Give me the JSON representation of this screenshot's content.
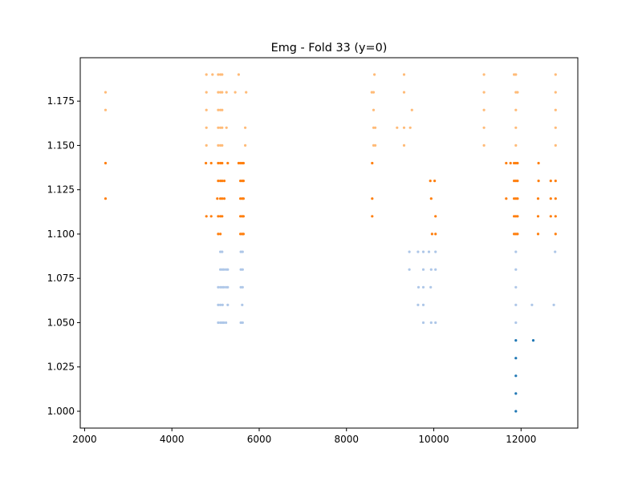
{
  "chart_data": {
    "type": "scatter",
    "title": "Emg - Fold 33 (y=0)",
    "xlabel": "",
    "ylabel": "",
    "xlim": [
      1900,
      13300
    ],
    "ylim": [
      0.9905,
      1.1995
    ],
    "x_ticks": [
      2000,
      4000,
      6000,
      8000,
      10000,
      12000
    ],
    "y_ticks": [
      1.0,
      1.025,
      1.05,
      1.075,
      1.1,
      1.125,
      1.15,
      1.175
    ],
    "x_tick_labels": [
      "2000",
      "4000",
      "6000",
      "8000",
      "10000",
      "12000"
    ],
    "y_tick_labels": [
      "1.000",
      "1.025",
      "1.050",
      "1.075",
      "1.100",
      "1.125",
      "1.150",
      "1.175"
    ],
    "grid": false,
    "legend": "none",
    "series": [
      {
        "color": "#1f77b4",
        "points": [
          [
            11880,
            1.0
          ],
          [
            11880,
            1.01
          ],
          [
            11880,
            1.02
          ],
          [
            11880,
            1.03
          ],
          [
            11880,
            1.04
          ],
          [
            12280,
            1.04
          ]
        ]
      },
      {
        "color": "#aec7e8",
        "points": [
          [
            5060,
            1.05
          ],
          [
            5110,
            1.05
          ],
          [
            5150,
            1.05
          ],
          [
            5190,
            1.05
          ],
          [
            5240,
            1.05
          ],
          [
            5580,
            1.05
          ],
          [
            5620,
            1.05
          ],
          [
            5060,
            1.06
          ],
          [
            5110,
            1.06
          ],
          [
            5160,
            1.06
          ],
          [
            5280,
            1.06
          ],
          [
            5610,
            1.06
          ],
          [
            5060,
            1.07
          ],
          [
            5110,
            1.07
          ],
          [
            5150,
            1.07
          ],
          [
            5190,
            1.07
          ],
          [
            5240,
            1.07
          ],
          [
            5280,
            1.07
          ],
          [
            5580,
            1.07
          ],
          [
            5620,
            1.07
          ],
          [
            5110,
            1.08
          ],
          [
            5150,
            1.08
          ],
          [
            5190,
            1.08
          ],
          [
            5240,
            1.08
          ],
          [
            5280,
            1.08
          ],
          [
            5580,
            1.08
          ],
          [
            5620,
            1.08
          ],
          [
            5110,
            1.09
          ],
          [
            5150,
            1.09
          ],
          [
            5580,
            1.09
          ],
          [
            5620,
            1.09
          ],
          [
            9760,
            1.05
          ],
          [
            9940,
            1.05
          ],
          [
            10040,
            1.05
          ],
          [
            9640,
            1.06
          ],
          [
            9760,
            1.06
          ],
          [
            9650,
            1.07
          ],
          [
            9760,
            1.07
          ],
          [
            9930,
            1.07
          ],
          [
            9440,
            1.08
          ],
          [
            9760,
            1.08
          ],
          [
            9940,
            1.08
          ],
          [
            10040,
            1.08
          ],
          [
            9440,
            1.09
          ],
          [
            9640,
            1.09
          ],
          [
            9760,
            1.09
          ],
          [
            9890,
            1.09
          ],
          [
            10040,
            1.09
          ],
          [
            11880,
            1.05
          ],
          [
            11880,
            1.06
          ],
          [
            11880,
            1.07
          ],
          [
            11880,
            1.08
          ],
          [
            11880,
            1.09
          ],
          [
            12250,
            1.06
          ],
          [
            12750,
            1.06
          ],
          [
            12780,
            1.09
          ]
        ]
      },
      {
        "color": "#ff7f0e",
        "points": [
          [
            2480,
            1.12
          ],
          [
            2480,
            1.14
          ],
          [
            4790,
            1.11
          ],
          [
            4900,
            1.11
          ],
          [
            5060,
            1.11
          ],
          [
            5110,
            1.11
          ],
          [
            5150,
            1.11
          ],
          [
            5060,
            1.1
          ],
          [
            5110,
            1.1
          ],
          [
            5040,
            1.12
          ],
          [
            5110,
            1.12
          ],
          [
            5150,
            1.12
          ],
          [
            5200,
            1.12
          ],
          [
            5060,
            1.13
          ],
          [
            5110,
            1.13
          ],
          [
            5150,
            1.13
          ],
          [
            5200,
            1.13
          ],
          [
            4780,
            1.14
          ],
          [
            4900,
            1.14
          ],
          [
            5060,
            1.14
          ],
          [
            5110,
            1.14
          ],
          [
            5150,
            1.14
          ],
          [
            5280,
            1.14
          ],
          [
            5570,
            1.1
          ],
          [
            5610,
            1.1
          ],
          [
            5640,
            1.1
          ],
          [
            5570,
            1.11
          ],
          [
            5610,
            1.11
          ],
          [
            5640,
            1.11
          ],
          [
            5570,
            1.12
          ],
          [
            5610,
            1.12
          ],
          [
            5640,
            1.12
          ],
          [
            5570,
            1.13
          ],
          [
            5610,
            1.13
          ],
          [
            5640,
            1.13
          ],
          [
            5530,
            1.14
          ],
          [
            5570,
            1.14
          ],
          [
            5610,
            1.14
          ],
          [
            5640,
            1.14
          ],
          [
            8590,
            1.11
          ],
          [
            8590,
            1.12
          ],
          [
            8590,
            1.14
          ],
          [
            9960,
            1.1
          ],
          [
            10040,
            1.1
          ],
          [
            10040,
            1.11
          ],
          [
            9940,
            1.12
          ],
          [
            9920,
            1.13
          ],
          [
            10020,
            1.13
          ],
          [
            11660,
            1.12
          ],
          [
            11660,
            1.14
          ],
          [
            11840,
            1.1
          ],
          [
            11880,
            1.1
          ],
          [
            11920,
            1.1
          ],
          [
            11840,
            1.11
          ],
          [
            11880,
            1.11
          ],
          [
            11920,
            1.11
          ],
          [
            11840,
            1.12
          ],
          [
            11880,
            1.12
          ],
          [
            11920,
            1.12
          ],
          [
            11840,
            1.13
          ],
          [
            11880,
            1.13
          ],
          [
            11920,
            1.13
          ],
          [
            11760,
            1.14
          ],
          [
            11840,
            1.14
          ],
          [
            11880,
            1.14
          ],
          [
            11920,
            1.14
          ],
          [
            12390,
            1.1
          ],
          [
            12390,
            1.11
          ],
          [
            12390,
            1.12
          ],
          [
            12400,
            1.13
          ],
          [
            12400,
            1.14
          ],
          [
            12680,
            1.11
          ],
          [
            12680,
            1.12
          ],
          [
            12680,
            1.13
          ],
          [
            12790,
            1.1
          ],
          [
            12790,
            1.11
          ],
          [
            12790,
            1.12
          ],
          [
            12790,
            1.13
          ]
        ]
      },
      {
        "color": "#ffbb78",
        "points": [
          [
            2480,
            1.17
          ],
          [
            2480,
            1.18
          ],
          [
            4790,
            1.15
          ],
          [
            4790,
            1.16
          ],
          [
            4790,
            1.17
          ],
          [
            4790,
            1.18
          ],
          [
            4790,
            1.19
          ],
          [
            4930,
            1.19
          ],
          [
            5060,
            1.15
          ],
          [
            5110,
            1.15
          ],
          [
            5150,
            1.15
          ],
          [
            5060,
            1.16
          ],
          [
            5110,
            1.16
          ],
          [
            5150,
            1.16
          ],
          [
            5250,
            1.16
          ],
          [
            5060,
            1.17
          ],
          [
            5110,
            1.17
          ],
          [
            5150,
            1.17
          ],
          [
            5060,
            1.18
          ],
          [
            5110,
            1.18
          ],
          [
            5150,
            1.18
          ],
          [
            5250,
            1.18
          ],
          [
            5060,
            1.19
          ],
          [
            5110,
            1.19
          ],
          [
            5150,
            1.19
          ],
          [
            5450,
            1.18
          ],
          [
            5530,
            1.19
          ],
          [
            5680,
            1.16
          ],
          [
            5680,
            1.15
          ],
          [
            5700,
            1.18
          ],
          [
            8580,
            1.18
          ],
          [
            8640,
            1.19
          ],
          [
            8620,
            1.18
          ],
          [
            8620,
            1.17
          ],
          [
            8620,
            1.16
          ],
          [
            8620,
            1.15
          ],
          [
            8660,
            1.15
          ],
          [
            8660,
            1.16
          ],
          [
            9160,
            1.16
          ],
          [
            9320,
            1.16
          ],
          [
            9460,
            1.16
          ],
          [
            9320,
            1.19
          ],
          [
            9320,
            1.18
          ],
          [
            9320,
            1.15
          ],
          [
            9500,
            1.17
          ],
          [
            11150,
            1.15
          ],
          [
            11150,
            1.16
          ],
          [
            11150,
            1.17
          ],
          [
            11150,
            1.18
          ],
          [
            11150,
            1.19
          ],
          [
            11840,
            1.19
          ],
          [
            11880,
            1.19
          ],
          [
            11880,
            1.18
          ],
          [
            11920,
            1.18
          ],
          [
            11880,
            1.17
          ],
          [
            11880,
            1.16
          ],
          [
            11880,
            1.15
          ],
          [
            12790,
            1.15
          ],
          [
            12790,
            1.16
          ],
          [
            12790,
            1.17
          ],
          [
            12790,
            1.18
          ],
          [
            12790,
            1.19
          ]
        ]
      }
    ]
  }
}
